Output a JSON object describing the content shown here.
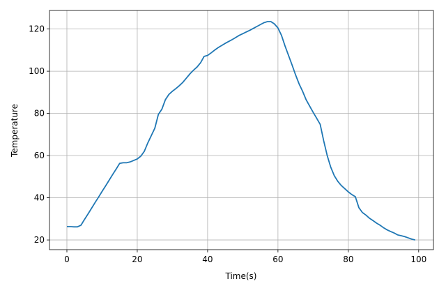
{
  "chart_data": {
    "type": "line",
    "x_label": "Time(s)",
    "y_label": "Temperature",
    "x": [
      0,
      1,
      2,
      3,
      4,
      5,
      6,
      7,
      8,
      9,
      10,
      11,
      12,
      13,
      14,
      15,
      16,
      17,
      18,
      19,
      20,
      21,
      22,
      23,
      24,
      25,
      26,
      27,
      28,
      29,
      30,
      31,
      32,
      33,
      34,
      35,
      36,
      37,
      38,
      39,
      40,
      41,
      42,
      43,
      44,
      45,
      46,
      47,
      48,
      49,
      50,
      51,
      52,
      53,
      54,
      55,
      56,
      57,
      58,
      59,
      60,
      61,
      62,
      63,
      64,
      65,
      66,
      67,
      68,
      69,
      70,
      71,
      72,
      73,
      74,
      75,
      76,
      77,
      78,
      79,
      80,
      81,
      82,
      83,
      84,
      85,
      86,
      87,
      88,
      89,
      90,
      91,
      92,
      93,
      94,
      95,
      96,
      97,
      98,
      99
    ],
    "series": [
      {
        "color": "#1f77b4",
        "values": [
          26.3,
          26.3,
          26.2,
          26.2,
          27,
          29.7,
          32.3,
          35,
          37.7,
          40.3,
          43,
          45.6,
          48.3,
          51,
          53.6,
          56.3,
          56.6,
          56.6,
          57,
          57.7,
          58.4,
          59.7,
          62,
          66,
          69.5,
          73,
          79.5,
          82,
          86.5,
          89,
          90.5,
          91.8,
          93.2,
          94.8,
          96.8,
          98.8,
          100.5,
          102,
          104,
          107,
          107.5,
          108.7,
          110,
          111.2,
          112.2,
          113.2,
          114.1,
          115,
          116,
          117,
          117.8,
          118.6,
          119.4,
          120.3,
          121.2,
          122.1,
          123,
          123.5,
          123.5,
          122.4,
          120.5,
          117,
          112,
          107.5,
          103,
          98.3,
          94,
          90.5,
          86.5,
          83.5,
          80.5,
          77.7,
          74.8,
          67,
          60,
          54.5,
          50.5,
          47.8,
          45.8,
          44.3,
          42.8,
          41.5,
          40.5,
          35.3,
          33,
          31.8,
          30.3,
          29.2,
          28,
          27,
          25.8,
          24.8,
          24,
          23.3,
          22.4,
          22,
          21.6,
          21,
          20.4,
          20
        ]
      }
    ],
    "xlim": [
      -4.95,
      104.2
    ],
    "ylim": [
      15.4,
      128.8
    ],
    "xticks": [
      0,
      20,
      40,
      60,
      80,
      100
    ],
    "yticks": [
      20,
      40,
      60,
      80,
      100,
      120
    ],
    "grid": true
  }
}
